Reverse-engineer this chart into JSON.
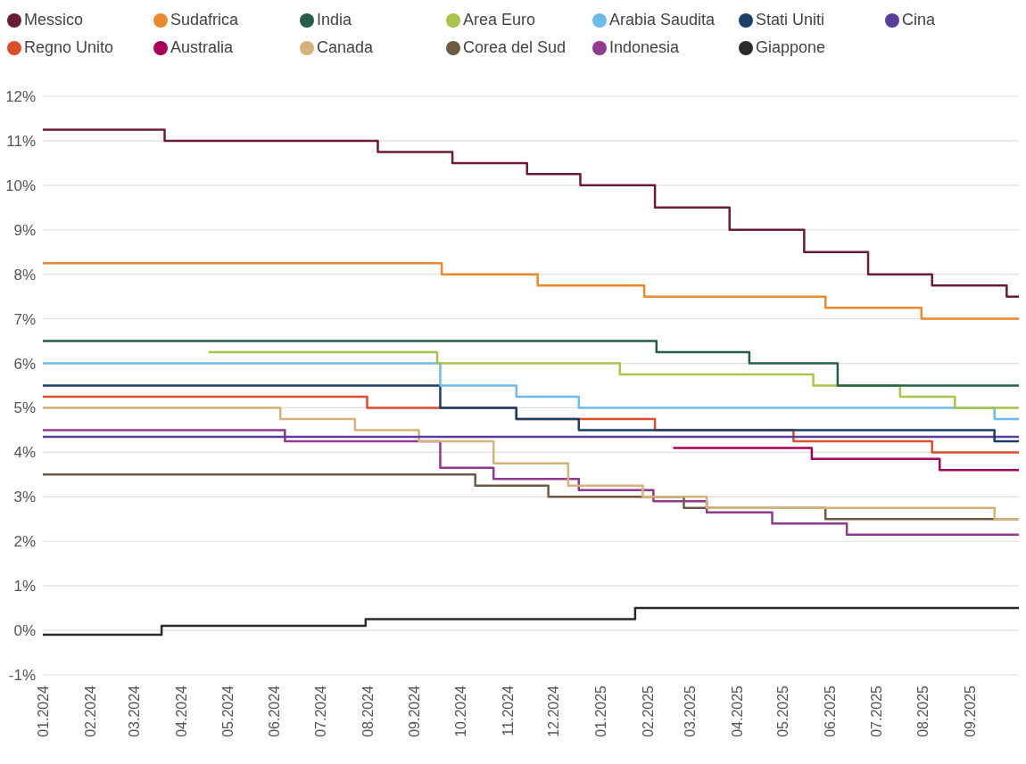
{
  "chart_data": {
    "type": "step",
    "xlim": [
      "2024-01-01",
      "2025-10-03"
    ],
    "xticks": [
      {
        "value": "2024-01-01",
        "label": "01.2024"
      },
      {
        "value": "2024-02-01",
        "label": "02.2024"
      },
      {
        "value": "2024-03-01",
        "label": "03.2024"
      },
      {
        "value": "2024-04-01",
        "label": "04.2024"
      },
      {
        "value": "2024-05-01",
        "label": "05.2024"
      },
      {
        "value": "2024-06-01",
        "label": "06.2024"
      },
      {
        "value": "2024-07-01",
        "label": "07.2024"
      },
      {
        "value": "2024-08-01",
        "label": "08.2024"
      },
      {
        "value": "2024-09-01",
        "label": "09.2024"
      },
      {
        "value": "2024-10-01",
        "label": "10.2024"
      },
      {
        "value": "2024-11-01",
        "label": "11.2024"
      },
      {
        "value": "2024-12-01",
        "label": "12.2024"
      },
      {
        "value": "2025-01-01",
        "label": "01.2025"
      },
      {
        "value": "2025-02-01",
        "label": "02.2025"
      },
      {
        "value": "2025-03-01",
        "label": "03.2025"
      },
      {
        "value": "2025-04-01",
        "label": "04.2025"
      },
      {
        "value": "2025-05-01",
        "label": "05.2025"
      },
      {
        "value": "2025-06-01",
        "label": "06.2025"
      },
      {
        "value": "2025-07-01",
        "label": "07.2025"
      },
      {
        "value": "2025-08-01",
        "label": "08.2025"
      },
      {
        "value": "2025-09-01",
        "label": "09.2025"
      }
    ],
    "ylim": [
      -1,
      12
    ],
    "yticks": [
      {
        "value": -1,
        "label": "-1%"
      },
      {
        "value": 0,
        "label": "0%"
      },
      {
        "value": 1,
        "label": "1%"
      },
      {
        "value": 2,
        "label": "2%"
      },
      {
        "value": 3,
        "label": "3%"
      },
      {
        "value": 4,
        "label": "4%"
      },
      {
        "value": 5,
        "label": "5%"
      },
      {
        "value": 6,
        "label": "6%"
      },
      {
        "value": 7,
        "label": "7%"
      },
      {
        "value": 8,
        "label": "8%"
      },
      {
        "value": 9,
        "label": "9%"
      },
      {
        "value": 10,
        "label": "10%"
      },
      {
        "value": 11,
        "label": "11%"
      },
      {
        "value": 12,
        "label": "12%"
      }
    ],
    "grid": "y",
    "legend": "top",
    "marker": "none",
    "line_style": "solid",
    "series": [
      {
        "name": "Messico",
        "color": "#6b1a3a",
        "x": [
          "2024-01-01",
          "2024-03-21",
          "2024-08-08",
          "2024-09-26",
          "2024-11-14",
          "2024-12-19",
          "2025-02-06",
          "2025-03-27",
          "2025-05-15",
          "2025-06-26",
          "2025-08-07",
          "2025-09-25",
          "2025-10-03"
        ],
        "values": [
          11.25,
          11.0,
          10.75,
          10.5,
          10.25,
          10.0,
          9.5,
          9.0,
          8.5,
          8.0,
          7.75,
          7.5,
          7.5
        ]
      },
      {
        "name": "Sudafrica",
        "color": "#e8892e",
        "x": [
          "2024-01-01",
          "2024-09-19",
          "2024-11-21",
          "2025-01-30",
          "2025-05-29",
          "2025-07-31",
          "2025-10-03"
        ],
        "values": [
          8.25,
          8.0,
          7.75,
          7.5,
          7.25,
          7.0,
          7.0
        ]
      },
      {
        "name": "India",
        "color": "#255e48",
        "x": [
          "2024-01-01",
          "2025-02-07",
          "2025-04-09",
          "2025-06-06",
          "2025-10-03"
        ],
        "values": [
          6.5,
          6.25,
          6.0,
          5.5,
          5.5
        ]
      },
      {
        "name": "Area Euro",
        "color": "#a8c44a",
        "x": [
          "2024-04-19",
          "2024-09-16",
          "2025-01-14",
          "2025-05-21",
          "2025-07-17",
          "2025-08-22",
          "2025-10-03"
        ],
        "values": [
          6.25,
          6.0,
          5.75,
          5.5,
          5.25,
          5.0,
          5.0
        ]
      },
      {
        "name": "Arabia Saudita",
        "color": "#6dbbe8",
        "x": [
          "2024-01-01",
          "2024-09-18",
          "2024-11-07",
          "2024-12-18",
          "2025-09-17",
          "2025-10-03"
        ],
        "values": [
          6.0,
          5.5,
          5.25,
          5.0,
          4.75,
          4.75
        ]
      },
      {
        "name": "Stati Uniti",
        "color": "#1b3f66",
        "x": [
          "2024-01-01",
          "2024-09-18",
          "2024-11-07",
          "2024-12-18",
          "2025-09-17",
          "2025-10-03"
        ],
        "values": [
          5.5,
          5.0,
          4.75,
          4.5,
          4.25,
          4.25
        ]
      },
      {
        "name": "Cina",
        "color": "#5b3d99",
        "x": [
          "2024-01-01",
          "2025-10-03"
        ],
        "values": [
          4.35,
          4.35
        ]
      },
      {
        "name": "Regno Unito",
        "color": "#d94f2b",
        "x": [
          "2024-01-01",
          "2024-08-01",
          "2024-11-07",
          "2025-02-06",
          "2025-05-08",
          "2025-08-07",
          "2025-10-03"
        ],
        "values": [
          5.25,
          5.0,
          4.75,
          4.5,
          4.25,
          4.0,
          4.0
        ]
      },
      {
        "name": "Australia",
        "color": "#a8005a",
        "x": [
          "2025-02-18",
          "2025-05-20",
          "2025-08-12",
          "2025-10-03"
        ],
        "values": [
          4.1,
          3.85,
          3.6,
          3.6
        ]
      },
      {
        "name": "Canada",
        "color": "#d5b27a",
        "x": [
          "2024-01-01",
          "2024-06-05",
          "2024-07-24",
          "2024-09-04",
          "2024-10-23",
          "2024-12-11",
          "2025-01-29",
          "2025-03-12",
          "2025-09-17",
          "2025-10-03"
        ],
        "values": [
          5.0,
          4.75,
          4.5,
          4.25,
          3.75,
          3.25,
          3.0,
          2.75,
          2.5,
          2.5
        ]
      },
      {
        "name": "Corea del Sud",
        "color": "#6e5a44",
        "x": [
          "2024-01-01",
          "2024-10-11",
          "2024-11-28",
          "2025-02-25",
          "2025-05-29",
          "2025-10-03"
        ],
        "values": [
          3.5,
          3.25,
          3.0,
          2.75,
          2.5,
          2.5
        ]
      },
      {
        "name": "Indonesia",
        "color": "#8e3a8e",
        "x": [
          "2024-01-01",
          "2024-06-08",
          "2024-09-18",
          "2024-10-23",
          "2024-12-18",
          "2025-02-05",
          "2025-03-12",
          "2025-04-24",
          "2025-06-12",
          "2025-10-03"
        ],
        "values": [
          4.5,
          4.25,
          3.65,
          3.4,
          3.15,
          2.9,
          2.65,
          2.4,
          2.15,
          2.15
        ]
      },
      {
        "name": "Giappone",
        "color": "#2a2a2e",
        "x": [
          "2024-01-01",
          "2024-03-19",
          "2024-07-31",
          "2025-01-24",
          "2025-10-03"
        ],
        "values": [
          -0.1,
          0.1,
          0.25,
          0.5,
          0.5
        ]
      }
    ]
  }
}
